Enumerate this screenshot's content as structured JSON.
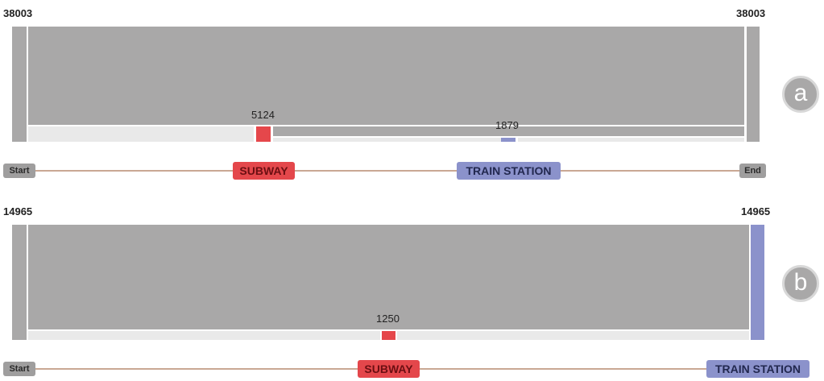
{
  "panel_a": {
    "label": "a",
    "start_count": "38003",
    "end_count": "38003",
    "subway_count": "5124",
    "train_station_count": "1879",
    "nodes": {
      "start": "Start",
      "subway": "SUBWAY",
      "train_station": "TRAIN STATION",
      "end": "End"
    }
  },
  "panel_b": {
    "label": "b",
    "start_count": "14965",
    "end_count": "14965",
    "subway_count": "1250",
    "nodes": {
      "start": "Start",
      "subway": "SUBWAY",
      "train_station": "TRAIN STATION"
    }
  },
  "colors": {
    "flow_gray": "#a9a8a8",
    "flow_light": "#e9e9e9",
    "subway_red": "#e5474b",
    "train_station_blue": "#8b92cb",
    "track": "#c9a894"
  }
}
